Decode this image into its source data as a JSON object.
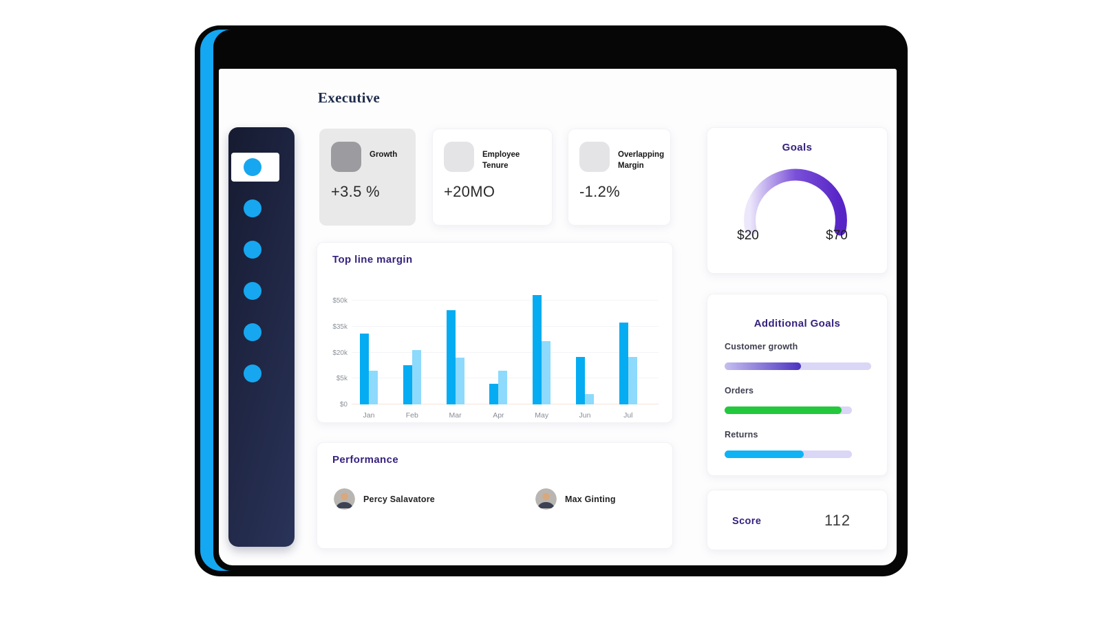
{
  "page_title": "Executive",
  "window": {
    "controls": [
      "window-dot-1",
      "window-dot-2",
      "window-dot-3"
    ],
    "accent_color": "#14a7f2"
  },
  "sidebar": {
    "items": [
      {
        "id": "nav-1",
        "active": true
      },
      {
        "id": "nav-2",
        "active": false
      },
      {
        "id": "nav-3",
        "active": false
      },
      {
        "id": "nav-4",
        "active": false
      },
      {
        "id": "nav-5",
        "active": false
      },
      {
        "id": "nav-6",
        "active": false
      }
    ],
    "dot_color": "#16a7f0"
  },
  "kpis": [
    {
      "label": "Growth",
      "value": "+3.5 %",
      "highlighted": true
    },
    {
      "label": "Employee Tenure",
      "value": "+20MO",
      "highlighted": false
    },
    {
      "label": "Overlapping Margin",
      "value": "-1.2%",
      "highlighted": false
    }
  ],
  "goals": {
    "title": "Goals",
    "min_label": "$20",
    "max_label": "$70",
    "gauge_gradient": [
      "#ece7fa",
      "#7a50d8",
      "#5724c6"
    ]
  },
  "chart_data": {
    "type": "bar",
    "title": "Top line margin",
    "categories": [
      "Jan",
      "Feb",
      "Mar",
      "Apr",
      "May",
      "Jun",
      "Jul"
    ],
    "series": [
      {
        "name": "primary",
        "color": "#05acf2",
        "values": [
          31000,
          12500,
          44500,
          4000,
          53000,
          17500,
          37500
        ]
      },
      {
        "name": "secondary",
        "color": "#8ddafc",
        "values": [
          9500,
          21500,
          17000,
          9500,
          26500,
          2000,
          17500
        ]
      }
    ],
    "yticks": {
      "values": [
        0,
        5000,
        20000,
        35000,
        50000
      ],
      "labels": [
        "$0",
        "$5k",
        "$20k",
        "$35k",
        "$50k"
      ]
    },
    "grid": true,
    "legend": false,
    "xlabel": "",
    "ylabel": ""
  },
  "additional_goals": {
    "title": "Additional Goals",
    "items": [
      {
        "label": "Customer growth",
        "percent": 52,
        "fill_color": "purple-gradient",
        "track_width": 213
      },
      {
        "label": "Orders",
        "percent": 92,
        "fill_color": "#23c83d",
        "track_width": 185
      },
      {
        "label": "Returns",
        "percent": 62,
        "fill_color": "#0fb3f4",
        "track_width": 185
      }
    ],
    "track_color": "#dad6f5"
  },
  "performance": {
    "title": "Performance",
    "people": [
      {
        "name": "Percy Salavatore"
      },
      {
        "name": "Max Ginting"
      }
    ]
  },
  "score": {
    "label": "Score",
    "value": "112"
  }
}
